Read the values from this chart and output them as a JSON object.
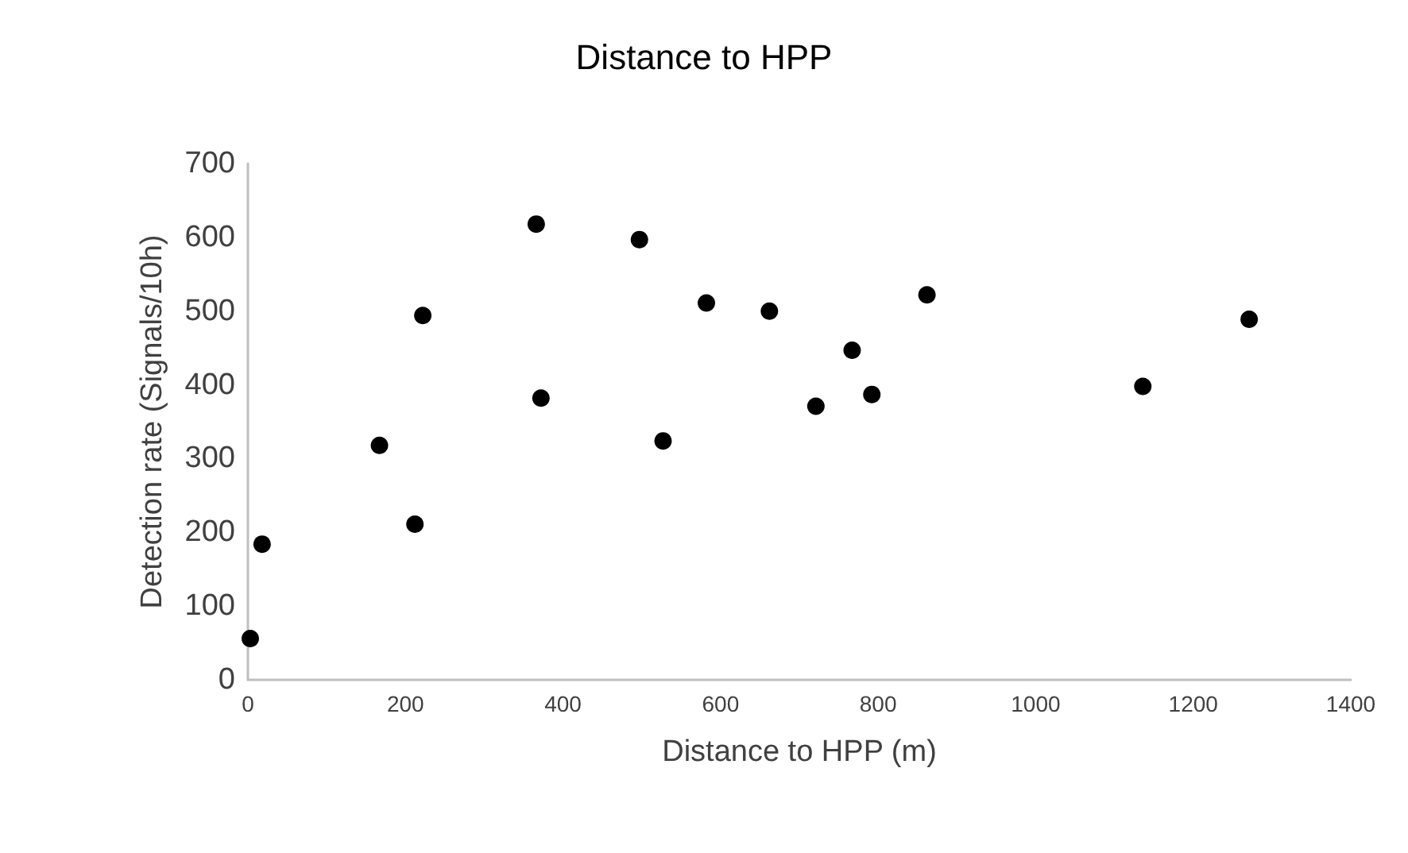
{
  "chart_data": {
    "type": "scatter",
    "title": "Distance to HPP",
    "xlabel": "Distance to HPP (m)",
    "ylabel": "Detection rate (Signals/10h)",
    "x": [
      3,
      18,
      167,
      212,
      222,
      366,
      372,
      497,
      527,
      582,
      662,
      721,
      767,
      792,
      862,
      1136,
      1271
    ],
    "series": [
      {
        "color": "#000000",
        "values": [
          56,
          184,
          318,
          211,
          494,
          618,
          382,
          597,
          324,
          511,
          500,
          371,
          447,
          387,
          522,
          398,
          489
        ]
      }
    ],
    "xlim": [
      0,
      1400
    ],
    "xticks": [
      0,
      200,
      400,
      600,
      800,
      1000,
      1200,
      1400
    ],
    "ylim": [
      0,
      700
    ],
    "yticks": [
      0,
      100,
      200,
      300,
      400,
      500,
      600,
      700
    ],
    "grid": false,
    "marker": "circle"
  }
}
